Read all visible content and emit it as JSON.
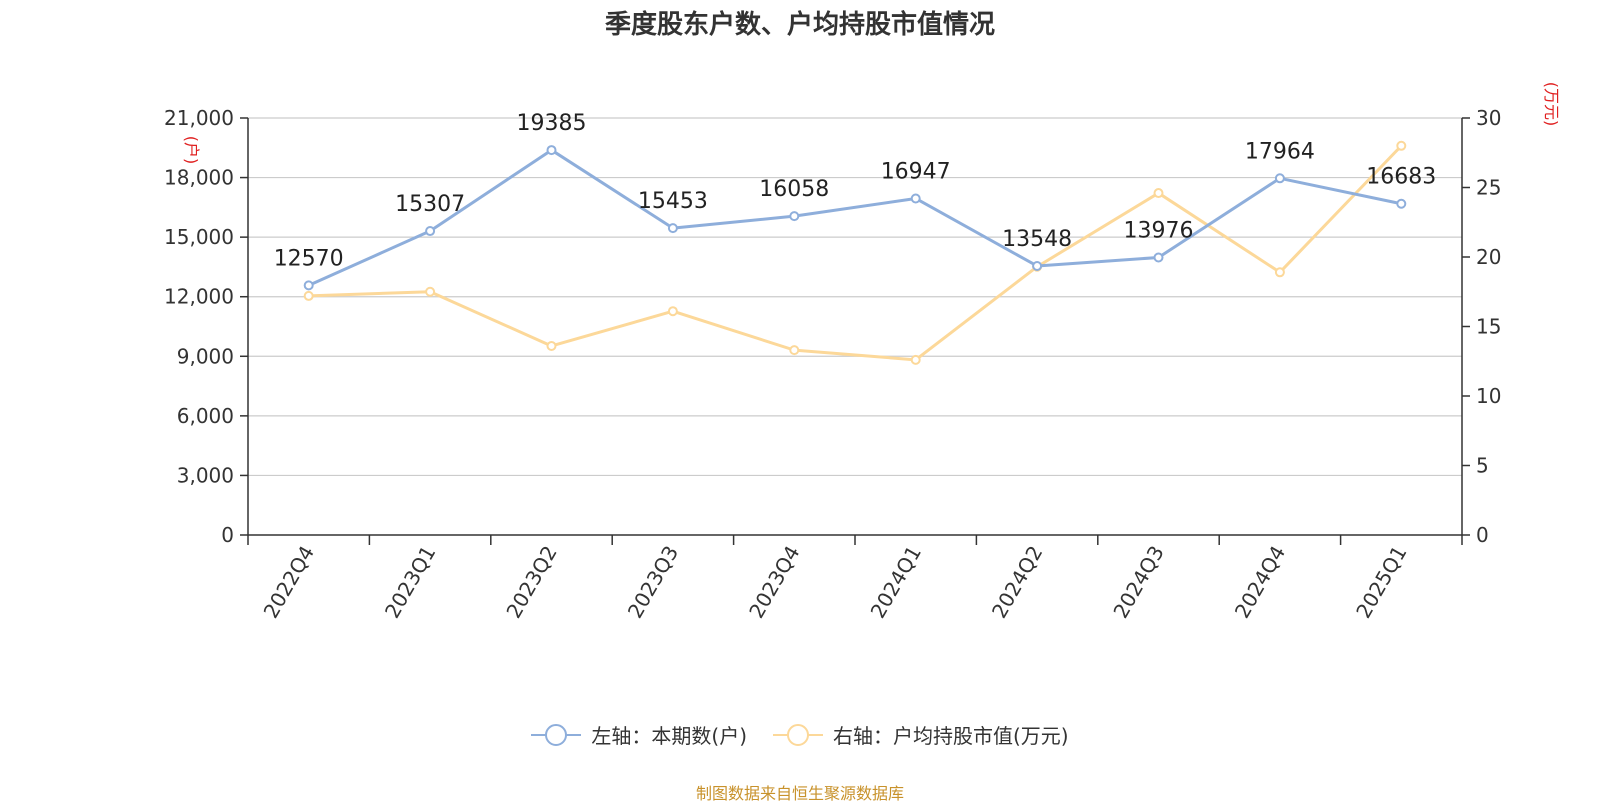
{
  "title": "季度股东户数、户均持股市值情况",
  "source": "制图数据来自恒生聚源数据库",
  "chart_data": {
    "type": "line",
    "categories": [
      "2022Q4",
      "2023Q1",
      "2023Q2",
      "2023Q3",
      "2023Q4",
      "2024Q1",
      "2024Q2",
      "2024Q3",
      "2024Q4",
      "2025Q1"
    ],
    "left_axis": {
      "unit_label": "(户)",
      "range": [
        0,
        21000
      ],
      "ticks": [
        0,
        3000,
        6000,
        9000,
        12000,
        15000,
        18000,
        21000
      ],
      "tick_labels": [
        "0",
        "3,000",
        "6,000",
        "9,000",
        "12,000",
        "15,000",
        "18,000",
        "21,000"
      ]
    },
    "right_axis": {
      "unit_label": "(万元)",
      "range": [
        0,
        30
      ],
      "ticks": [
        0,
        5,
        10,
        15,
        20,
        25,
        30
      ],
      "tick_labels": [
        "0",
        "5",
        "10",
        "15",
        "20",
        "25",
        "30"
      ]
    },
    "series": [
      {
        "name": "左轴：本期数(户)",
        "axis": "left",
        "color": "#8eaedb",
        "values": [
          12570,
          15307,
          19385,
          15453,
          16058,
          16947,
          13548,
          13976,
          17964,
          16683
        ],
        "labels": [
          "12570",
          "15307",
          "19385",
          "15453",
          "16058",
          "16947",
          "13548",
          "13976",
          "17964",
          "16683"
        ]
      },
      {
        "name": "右轴：户均持股市值(万元)",
        "axis": "right",
        "color": "#fcd899",
        "values": [
          17.2,
          17.5,
          13.6,
          16.1,
          13.3,
          12.6,
          19.3,
          24.6,
          18.9,
          28.0
        ]
      }
    ],
    "grid": true,
    "legend_position": "bottom"
  }
}
